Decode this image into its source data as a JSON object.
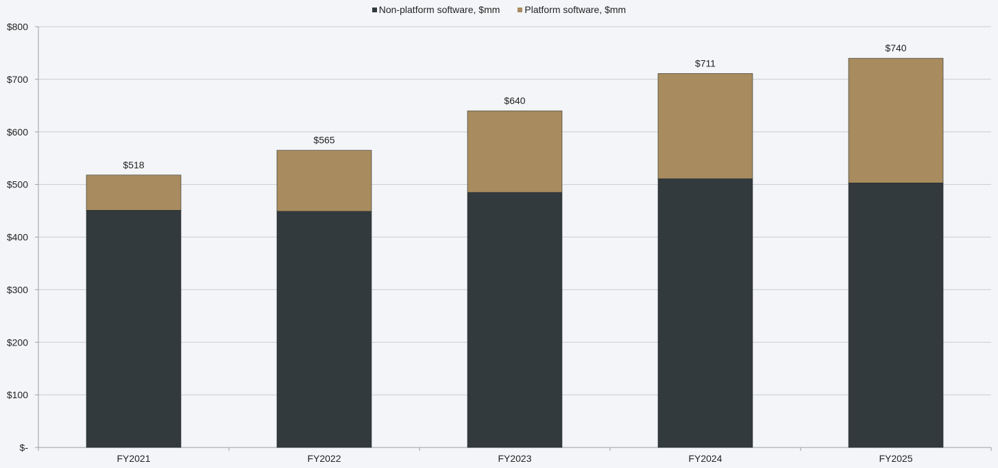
{
  "chart_data": {
    "type": "bar",
    "stacked": true,
    "categories": [
      "FY2021",
      "FY2022",
      "FY2023",
      "FY2024",
      "FY2025"
    ],
    "series": [
      {
        "name": "Non-platform software, $mm",
        "color": "#323a3d",
        "values": [
          451,
          449,
          485,
          511,
          503
        ]
      },
      {
        "name": "Platform software, $mm",
        "color": "#a88b5e",
        "values": [
          67,
          116,
          155,
          200,
          237
        ]
      }
    ],
    "totals": [
      518,
      565,
      640,
      711,
      740
    ],
    "total_labels": [
      "$518",
      "$565",
      "$640",
      "$711",
      "$740"
    ],
    "y_ticks": [
      0,
      100,
      200,
      300,
      400,
      500,
      600,
      700,
      800
    ],
    "y_tick_labels": [
      "$-",
      "$100",
      "$200",
      "$300",
      "$400",
      "$500",
      "$600",
      "$700",
      "$800"
    ],
    "ylim": [
      0,
      800
    ],
    "grid": true,
    "legend_position": "top-center",
    "title": "",
    "xlabel": "",
    "ylabel": ""
  }
}
